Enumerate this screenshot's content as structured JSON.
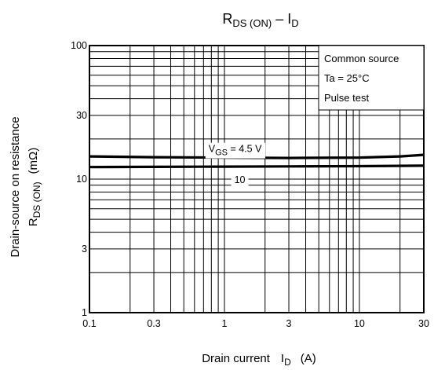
{
  "chart_data": {
    "type": "line",
    "title": {
      "main": "R",
      "main_sub": "DS (ON)",
      "sep": " – ",
      "second": "I",
      "second_sub": "D"
    },
    "xlabel": {
      "main": "Drain current",
      "var": "I",
      "var_sub": "D",
      "unit": "(A)"
    },
    "ylabel": {
      "line1": "Drain-source on resistance",
      "var": "R",
      "var_sub": "DS (ON)",
      "unit": "(mΩ)"
    },
    "x_scale": "log",
    "y_scale": "log",
    "xlim": [
      0.1,
      30
    ],
    "ylim": [
      1,
      100
    ],
    "x_ticks": [
      {
        "value": 0.1,
        "label": "0.1"
      },
      {
        "value": 0.3,
        "label": "0.3"
      },
      {
        "value": 1,
        "label": "1"
      },
      {
        "value": 3,
        "label": "3"
      },
      {
        "value": 10,
        "label": "10"
      },
      {
        "value": 30,
        "label": "30"
      }
    ],
    "y_ticks": [
      {
        "value": 1,
        "label": "1"
      },
      {
        "value": 3,
        "label": "3"
      },
      {
        "value": 10,
        "label": "10"
      },
      {
        "value": 30,
        "label": "30"
      },
      {
        "value": 100,
        "label": "100"
      }
    ],
    "grid": true,
    "legend": {
      "placement": "top-right",
      "lines": [
        "Common source",
        "Ta = 25°C",
        "Pulse test"
      ]
    },
    "series": [
      {
        "label": {
          "pre": "V",
          "sub": "GS",
          "post": " = 4.5 V"
        },
        "label_at_x": 1.2,
        "x": [
          0.1,
          0.3,
          1,
          3,
          10,
          20,
          30
        ],
        "y": [
          14.8,
          14.6,
          14.5,
          14.4,
          14.5,
          14.8,
          15.2
        ]
      },
      {
        "label": {
          "pre": "",
          "sub": "",
          "post": "10"
        },
        "label_at_x": 1.3,
        "x": [
          0.1,
          0.3,
          1,
          3,
          10,
          30
        ],
        "y": [
          12.3,
          12.35,
          12.4,
          12.45,
          12.5,
          12.6
        ]
      }
    ]
  }
}
